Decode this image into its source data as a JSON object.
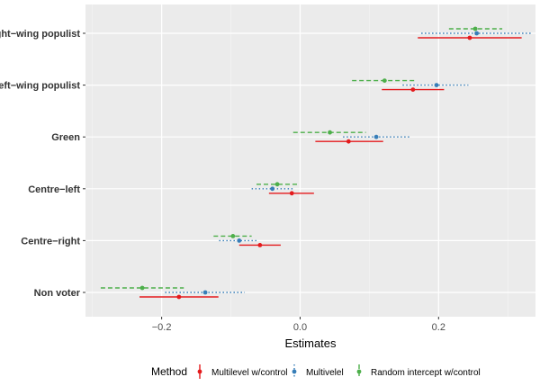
{
  "chart_data": {
    "type": "dot-interval",
    "title": "",
    "xlabel": "Estimates",
    "ylabel": "",
    "xlim": [
      -0.31,
      0.34
    ],
    "x_ticks": [
      -0.2,
      0.0,
      0.2
    ],
    "x_tick_labels": [
      "−0.2",
      "0.0",
      "0.2"
    ],
    "categories": [
      "Right−wing populist",
      "Left−wing populist",
      "Green",
      "Centre−left",
      "Centre−right",
      "Non voter"
    ],
    "legend": {
      "title": "Method",
      "position": "bottom"
    },
    "series": [
      {
        "name": "Multilevel w/control",
        "color": "#e41a1c",
        "line": "solid",
        "estimates": [
          0.245,
          0.163,
          0.07,
          -0.012,
          -0.058,
          -0.175
        ],
        "lower": [
          0.17,
          0.118,
          0.022,
          -0.045,
          -0.088,
          -0.232
        ],
        "upper": [
          0.32,
          0.208,
          0.12,
          0.02,
          -0.028,
          -0.118
        ]
      },
      {
        "name": "Multivelel",
        "color": "#377eb8",
        "line": "dotted",
        "estimates": [
          0.255,
          0.197,
          0.11,
          -0.04,
          -0.088,
          -0.137
        ],
        "lower": [
          0.175,
          0.148,
          0.062,
          -0.07,
          -0.117,
          -0.195
        ],
        "upper": [
          0.335,
          0.243,
          0.158,
          -0.01,
          -0.06,
          -0.08
        ]
      },
      {
        "name": "Random intercept w/control",
        "color": "#4daf4a",
        "line": "dashed",
        "estimates": [
          0.253,
          0.122,
          0.043,
          -0.033,
          -0.097,
          -0.228
        ],
        "lower": [
          0.215,
          0.075,
          -0.01,
          -0.063,
          -0.125,
          -0.288
        ],
        "upper": [
          0.292,
          0.168,
          0.095,
          -0.003,
          -0.07,
          -0.168
        ]
      }
    ]
  }
}
